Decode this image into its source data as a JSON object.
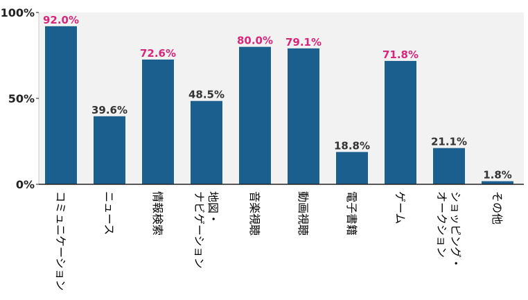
{
  "chart_data": {
    "type": "bar",
    "title": "",
    "xlabel": "",
    "ylabel": "",
    "ylim": [
      0,
      100
    ],
    "yticks": [
      {
        "value": 0,
        "label": "0%"
      },
      {
        "value": 50,
        "label": "50%"
      },
      {
        "value": 100,
        "label": "100%"
      }
    ],
    "categories": [
      "コミュニケーション",
      "ニュース",
      "情報検索",
      "地図・\nナビゲーション",
      "音楽視聴",
      "動画視聴",
      "電子書籍",
      "ゲーム",
      "ショッピング・\nオークション",
      "その他"
    ],
    "values": [
      92.0,
      39.6,
      72.6,
      48.5,
      80.0,
      79.1,
      18.8,
      71.8,
      21.1,
      1.8
    ],
    "value_labels": [
      "92.0%",
      "39.6%",
      "72.6%",
      "48.5%",
      "80.0%",
      "79.1%",
      "18.8%",
      "71.8%",
      "21.1%",
      "1.8%"
    ],
    "highlighted": [
      true,
      false,
      true,
      false,
      true,
      true,
      false,
      true,
      false,
      false
    ],
    "colors": {
      "bar": "#1a5f8e",
      "highlight_label": "#d6277a",
      "normal_label": "#333333",
      "plot_background": "#f2f2f2",
      "axis": "#222222"
    },
    "grid": false,
    "legend": "none"
  }
}
